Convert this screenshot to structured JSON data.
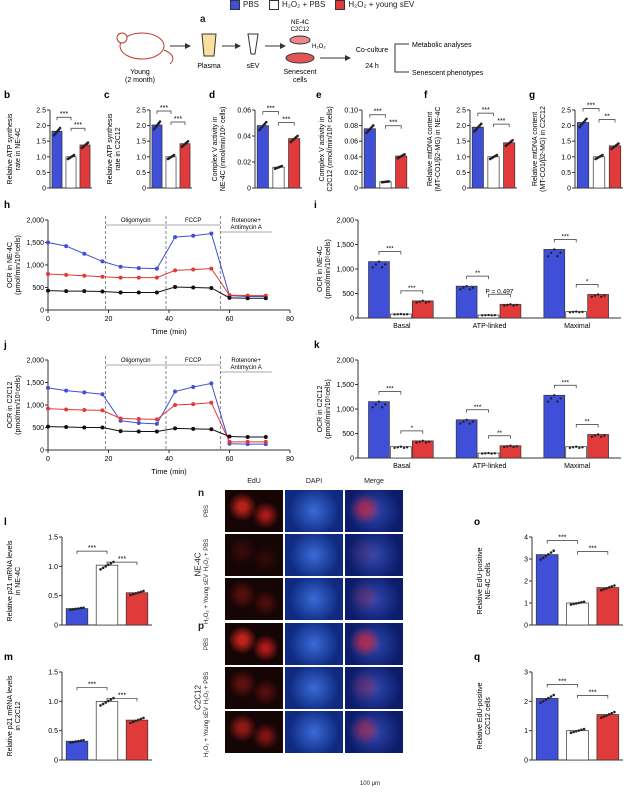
{
  "colors": {
    "pbs": "#3f4fd8",
    "h2o2_pbs": "#ffffff",
    "young_sev": "#e03a3a",
    "oligo_line": "#888888"
  },
  "legend": [
    {
      "label": "PBS",
      "color": "#3f4fd8"
    },
    {
      "label": "H₂O₂ + PBS",
      "color": "#ffffff"
    },
    {
      "label": "H₂O₂ + young sEV",
      "color": "#e03a3a"
    }
  ],
  "schematic": {
    "panel": "a",
    "mouse_label": "Young",
    "mouse_sub": "(2 month)",
    "plasma": "Plasma",
    "sev": "sEV",
    "cells_top": "NE-4C",
    "cells_top2": "C2C12",
    "h2o2": "H₂O₂",
    "senescent": "Senescent",
    "senescent2": "cells",
    "coculture": "Co-culture",
    "time": "24 h",
    "out1": "Metabolic analyses",
    "out2": "Senescent phenotypes"
  },
  "chart_data": [
    {
      "panel": "b",
      "type": "bar",
      "ylabel": [
        "Relative ATP synthesis",
        "rate in NE-4C"
      ],
      "ylim": [
        0,
        2.5
      ],
      "yticks": [
        "0",
        "0.5",
        "1.0",
        "1.5",
        "2.0",
        "2.5"
      ],
      "categories": [
        "PBS",
        "H2O2+PBS",
        "H2O2+young sEV"
      ],
      "values": [
        1.82,
        1.0,
        1.38
      ],
      "sig": [
        "***",
        "***"
      ]
    },
    {
      "panel": "c",
      "type": "bar",
      "ylabel": [
        "Relative ATP synthesis",
        "rate in C2C12"
      ],
      "ylim": [
        0,
        2.5
      ],
      "yticks": [
        "0",
        "0.5",
        "1.0",
        "1.5",
        "2.0",
        "2.5"
      ],
      "categories": [
        "PBS",
        "H2O2+PBS",
        "H2O2+young sEV"
      ],
      "values": [
        2.02,
        1.0,
        1.42
      ],
      "sig": [
        "***",
        "***"
      ]
    },
    {
      "panel": "d",
      "type": "bar",
      "ylabel": [
        "Complex V activity in",
        "NE-4C (nmol/min/10⁶ cells)"
      ],
      "ylim": [
        0,
        0.06
      ],
      "yticks": [
        "0",
        "0.02",
        "0.04",
        "0.06"
      ],
      "categories": [
        "PBS",
        "H2O2+PBS",
        "H2O2+young sEV"
      ],
      "values": [
        0.048,
        0.016,
        0.038
      ],
      "sig": [
        "***",
        "***"
      ]
    },
    {
      "panel": "e",
      "type": "bar",
      "ylabel": [
        "Complex V activity in",
        "C2C12 (nmol/min/10⁶ cells)"
      ],
      "ylim": [
        0,
        0.1
      ],
      "yticks": [
        "0",
        "0.02",
        "0.04",
        "0.06",
        "0.08",
        "0.10"
      ],
      "categories": [
        "PBS",
        "H2O2+PBS",
        "H2O2+young sEV"
      ],
      "values": [
        0.076,
        0.008,
        0.041
      ],
      "sig": [
        "***",
        "***"
      ]
    },
    {
      "panel": "f",
      "type": "bar",
      "ylabel": [
        "Relative mtDNA content",
        "(MT-CO1/β2-MG) in NE-4C"
      ],
      "ylim": [
        0,
        2.5
      ],
      "yticks": [
        "0",
        "0.5",
        "1.0",
        "1.5",
        "2.0",
        "2.5"
      ],
      "categories": [
        "PBS",
        "H2O2+PBS",
        "H2O2+young sEV"
      ],
      "values": [
        1.95,
        1.0,
        1.45
      ],
      "sig": [
        "***",
        "***"
      ]
    },
    {
      "panel": "g",
      "type": "bar",
      "ylabel": [
        "Relative mtDNA content",
        "(MT-CO1/β2-MG) in C2C12"
      ],
      "ylim": [
        0,
        2.5
      ],
      "yticks": [
        "0",
        "0.5",
        "1.0",
        "1.5",
        "2.0",
        "2.5"
      ],
      "categories": [
        "PBS",
        "H2O2+PBS",
        "H2O2+young sEV"
      ],
      "values": [
        2.1,
        1.0,
        1.35
      ],
      "sig": [
        "***",
        "**"
      ]
    },
    {
      "panel": "h",
      "type": "line",
      "ylabel": [
        "OCR in NE-4C",
        "(pmol/min/10⁵cells)"
      ],
      "xlabel": "Time (min)",
      "xlim": [
        0,
        80
      ],
      "ylim": [
        0,
        2000
      ],
      "xticks": [
        "0",
        "20",
        "40",
        "60",
        "80"
      ],
      "yticks": [
        "0",
        "500",
        "1,000",
        "1,500",
        "2,000"
      ],
      "phases": [
        "Oligomycin",
        "FCCP",
        "Rotenone+\nAntimycin  A"
      ],
      "x": [
        0,
        6,
        12,
        18,
        24,
        30,
        36,
        42,
        48,
        54,
        60,
        66,
        72
      ],
      "series": [
        {
          "name": "PBS",
          "values": [
            1500,
            1420,
            1250,
            1080,
            960,
            930,
            920,
            1620,
            1650,
            1700,
            320,
            300,
            300
          ]
        },
        {
          "name": "H2O2+young sEV",
          "values": [
            800,
            780,
            760,
            740,
            720,
            720,
            720,
            880,
            900,
            920,
            330,
            320,
            320
          ]
        },
        {
          "name": "H2O2+PBS",
          "values": [
            430,
            420,
            420,
            410,
            390,
            390,
            390,
            510,
            500,
            490,
            270,
            260,
            260
          ]
        }
      ]
    },
    {
      "panel": "i",
      "type": "bar",
      "ylabel": [
        "OCR in NE-4C",
        "(pmol/min/10⁵cells)"
      ],
      "ylim": [
        0,
        2000
      ],
      "yticks": [
        "0",
        "500",
        "1,000",
        "1,500",
        "2,000"
      ],
      "categories": [
        "Basal",
        "ATP-linked",
        "Maximal"
      ],
      "series": [
        {
          "name": "PBS",
          "values": [
            1150,
            650,
            1400
          ]
        },
        {
          "name": "H2O2+PBS",
          "values": [
            80,
            60,
            130
          ]
        },
        {
          "name": "H2O2+young sEV",
          "values": [
            350,
            280,
            480
          ]
        }
      ],
      "sig": [
        "***",
        "***",
        "**",
        "P = 0.497",
        "***",
        "*"
      ]
    },
    {
      "panel": "j",
      "type": "line",
      "ylabel": [
        "OCR in C2C12",
        "(pmol/min/10⁵cells)"
      ],
      "xlabel": "Time (min)",
      "xlim": [
        0,
        80
      ],
      "ylim": [
        0,
        2000
      ],
      "xticks": [
        "0",
        "20",
        "40",
        "60",
        "80"
      ],
      "yticks": [
        "0",
        "500",
        "1,000",
        "1,500",
        "2,000"
      ],
      "phases": [
        "Oligomycin",
        "FCCP",
        "Rotenone+\nAntimycin  A"
      ],
      "x": [
        0,
        6,
        12,
        18,
        24,
        30,
        36,
        42,
        48,
        54,
        60,
        66,
        72
      ],
      "series": [
        {
          "name": "PBS",
          "values": [
            1380,
            1320,
            1280,
            1240,
            650,
            600,
            580,
            1300,
            1400,
            1480,
            140,
            130,
            130
          ]
        },
        {
          "name": "H2O2+young sEV",
          "values": [
            920,
            900,
            890,
            880,
            700,
            690,
            680,
            1000,
            1020,
            1050,
            180,
            180,
            180
          ]
        },
        {
          "name": "H2O2+PBS",
          "values": [
            520,
            510,
            500,
            500,
            420,
            410,
            410,
            480,
            470,
            460,
            300,
            290,
            290
          ]
        }
      ]
    },
    {
      "panel": "k",
      "type": "bar",
      "ylabel": [
        "OCR in C2C12",
        "(pmol/min/10⁵cells)"
      ],
      "ylim": [
        0,
        2000
      ],
      "yticks": [
        "0",
        "500",
        "1,000",
        "1,500",
        "2,000"
      ],
      "categories": [
        "Basal",
        "ATP-linked",
        "Maximal"
      ],
      "series": [
        {
          "name": "PBS",
          "values": [
            1150,
            780,
            1280
          ]
        },
        {
          "name": "H2O2+PBS",
          "values": [
            230,
            100,
            230
          ]
        },
        {
          "name": "H2O2+young sEV",
          "values": [
            350,
            250,
            480
          ]
        }
      ],
      "sig": [
        "***",
        "*",
        "***",
        "**",
        "***",
        "**"
      ]
    },
    {
      "panel": "l",
      "type": "bar",
      "ylabel": [
        "Relative p21 mRNA levels",
        "in NE-4C"
      ],
      "ylim": [
        0,
        1.5
      ],
      "yticks": [
        "0",
        "0.5",
        "1.0",
        "1.5"
      ],
      "categories": [
        "PBS",
        "H2O2+PBS",
        "H2O2+young sEV"
      ],
      "values": [
        0.28,
        1.02,
        0.55
      ],
      "sig": [
        "***",
        "***"
      ]
    },
    {
      "panel": "m",
      "type": "bar",
      "ylabel": [
        "Relative p21 mRNA levels",
        "in C2C12"
      ],
      "ylim": [
        0,
        1.5
      ],
      "yticks": [
        "0",
        "0.5",
        "1.0",
        "1.5"
      ],
      "categories": [
        "PBS",
        "H2O2+PBS",
        "H2O2+young sEV"
      ],
      "values": [
        0.32,
        1.0,
        0.68
      ],
      "sig": [
        "***",
        "***"
      ]
    },
    {
      "panel": "o",
      "type": "bar",
      "ylabel": [
        "Relative EdU-positive",
        "NE-4C cells"
      ],
      "ylim": [
        0,
        4
      ],
      "yticks": [
        "0",
        "1",
        "2",
        "3",
        "4"
      ],
      "categories": [
        "PBS",
        "H2O2+PBS",
        "H2O2+young sEV"
      ],
      "values": [
        3.2,
        1.0,
        1.7
      ],
      "sig": [
        "***",
        "***"
      ]
    },
    {
      "panel": "q",
      "type": "bar",
      "ylabel": [
        "Relative EdU-positive",
        "C2C12 cells"
      ],
      "ylim": [
        0,
        3
      ],
      "yticks": [
        "0",
        "1",
        "2",
        "3"
      ],
      "categories": [
        "PBS",
        "H2O2+PBS",
        "H2O2+young sEV"
      ],
      "values": [
        2.1,
        1.0,
        1.55
      ],
      "sig": [
        "***",
        "***"
      ]
    }
  ],
  "microscopy": {
    "columns": [
      "EdU",
      "DAPI",
      "Merge"
    ],
    "rows_n": [
      "PBS",
      "H₂O₂ + PBS",
      "H₂O₂ + Young sEV"
    ],
    "rows_p": [
      "PBS",
      "H₂O₂ + PBS",
      "H₂O₂ + Young sEV"
    ],
    "cell_n": "NE-4C",
    "cell_p": "C2C12",
    "scale": "100 μm",
    "edu_density": [
      [
        0.8,
        0.15,
        0.3
      ],
      [
        0.85,
        0.35,
        0.6
      ]
    ]
  }
}
